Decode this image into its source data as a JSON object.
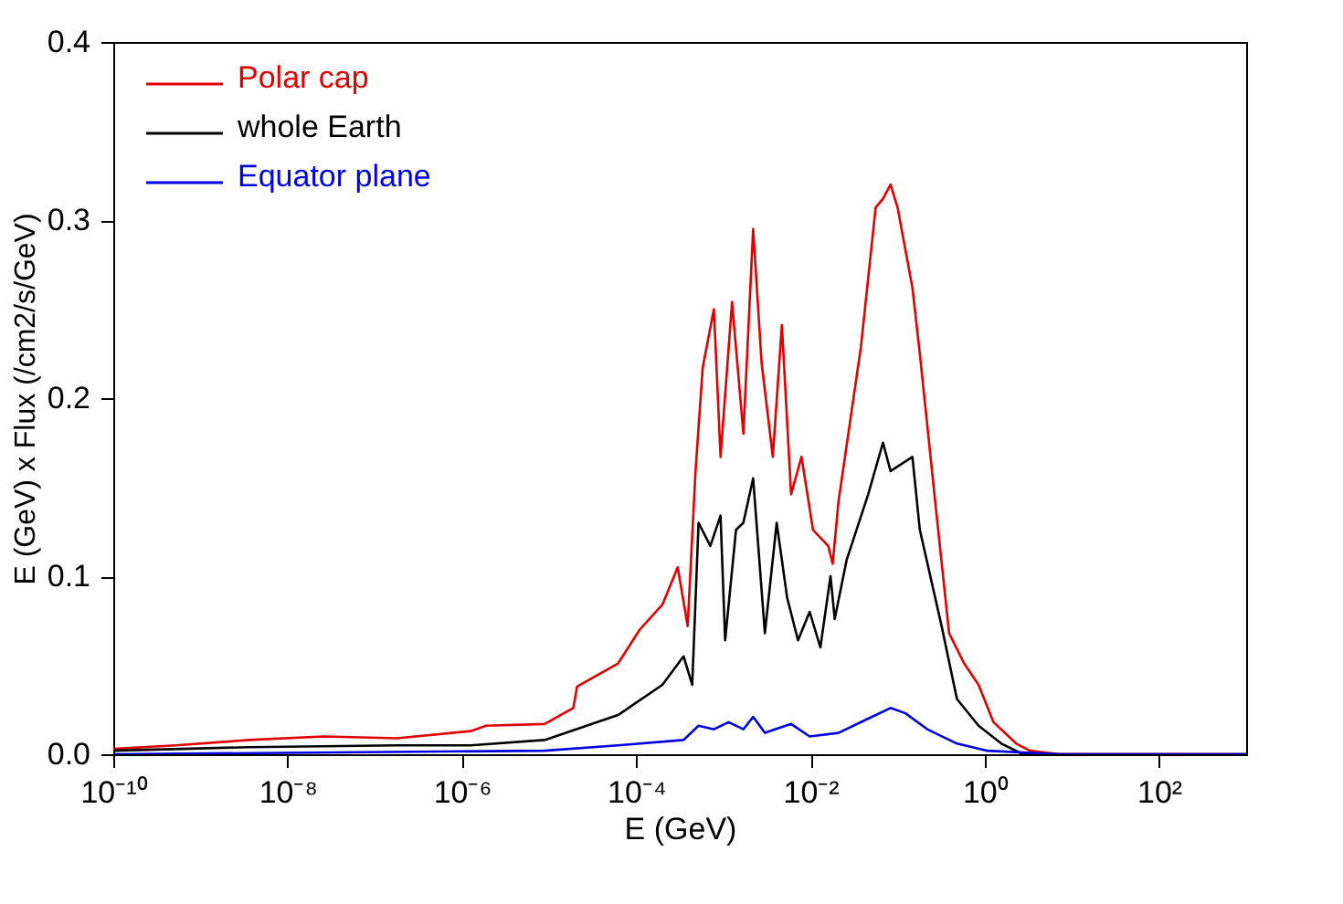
{
  "chart_data": {
    "type": "line",
    "xlabel": "E (GeV)",
    "ylabel": "E (GeV) x Flux (/cm2/s/GeV)",
    "log": "x",
    "grid": false,
    "legend": "top left",
    "marker": "none",
    "line_style": "solid",
    "xlim": [
      1e-10,
      1000
    ],
    "ylim": [
      0,
      0.4
    ],
    "xticks": [
      {
        "value": 1e-10,
        "label": "10⁻¹⁰"
      },
      {
        "value": 1e-08,
        "label": "10⁻⁸"
      },
      {
        "value": 1e-06,
        "label": "10⁻⁶"
      },
      {
        "value": 0.0001,
        "label": "10⁻⁴"
      },
      {
        "value": 0.01,
        "label": "10⁻²"
      },
      {
        "value": 1,
        "label": "10⁰"
      },
      {
        "value": 100,
        "label": "10²"
      }
    ],
    "yticks": [
      {
        "value": 0,
        "label": "0.0"
      },
      {
        "value": 0.1,
        "label": "0.1"
      },
      {
        "value": 0.2,
        "label": "0.2"
      },
      {
        "value": 0.3,
        "label": "0.3"
      },
      {
        "value": 0.4,
        "label": "0.4"
      }
    ],
    "series": [
      {
        "name": "Polar cap",
        "color": "#e00000",
        "x": [
          1e-10,
          5.2e-10,
          3.6e-09,
          2.6e-08,
          1.8e-07,
          1.26e-06,
          1.9e-06,
          8.9e-06,
          1.9e-05,
          2.1e-05,
          6.2e-05,
          0.00011,
          0.0002,
          0.0003,
          0.00039,
          0.00048,
          0.00058,
          0.00078,
          0.00093,
          0.00126,
          0.0017,
          0.0022,
          0.00275,
          0.0037,
          0.0047,
          0.006,
          0.0079,
          0.0107,
          0.016,
          0.018,
          0.021,
          0.038,
          0.056,
          0.068,
          0.083,
          0.1,
          0.148,
          0.18,
          0.27,
          0.39,
          0.58,
          0.85,
          1.26,
          2.3,
          3.3,
          7.2,
          1000
        ],
        "values": [
          0.003,
          0.005,
          0.008,
          0.01,
          0.009,
          0.013,
          0.016,
          0.017,
          0.026,
          0.038,
          0.051,
          0.07,
          0.084,
          0.105,
          0.072,
          0.159,
          0.217,
          0.25,
          0.167,
          0.254,
          0.18,
          0.295,
          0.22,
          0.167,
          0.241,
          0.146,
          0.167,
          0.126,
          0.117,
          0.107,
          0.142,
          0.229,
          0.307,
          0.312,
          0.32,
          0.307,
          0.262,
          0.225,
          0.142,
          0.068,
          0.051,
          0.039,
          0.018,
          0.006,
          0.002,
          0,
          0
        ]
      },
      {
        "name": "whole Earth",
        "color": "#000000",
        "x": [
          1e-10,
          3.6e-09,
          1.8e-07,
          1.26e-06,
          8.9e-06,
          6.2e-05,
          0.0002,
          0.00035,
          0.00044,
          0.00052,
          0.00071,
          0.00093,
          0.00105,
          0.0014,
          0.0017,
          0.0022,
          0.003,
          0.0041,
          0.0054,
          0.0072,
          0.0098,
          0.013,
          0.017,
          0.019,
          0.026,
          0.046,
          0.068,
          0.083,
          0.148,
          0.18,
          0.32,
          0.48,
          0.85,
          1.55,
          2.75,
          7.2,
          1000
        ],
        "values": [
          0.002,
          0.004,
          0.005,
          0.005,
          0.008,
          0.022,
          0.039,
          0.055,
          0.039,
          0.13,
          0.117,
          0.134,
          0.064,
          0.126,
          0.13,
          0.155,
          0.068,
          0.13,
          0.088,
          0.064,
          0.08,
          0.06,
          0.1,
          0.076,
          0.109,
          0.146,
          0.175,
          0.159,
          0.167,
          0.126,
          0.072,
          0.031,
          0.016,
          0.006,
          0,
          0,
          0
        ]
      },
      {
        "name": "Equator plane",
        "color": "#0000e0",
        "x": [
          1e-10,
          8.9e-06,
          6.2e-05,
          0.00035,
          0.00052,
          0.00078,
          0.00115,
          0.0017,
          0.0022,
          0.003,
          0.006,
          0.0098,
          0.021,
          0.046,
          0.083,
          0.123,
          0.22,
          0.48,
          1.05,
          7.2,
          1000
        ],
        "values": [
          0,
          0.002,
          0.005,
          0.008,
          0.016,
          0.014,
          0.018,
          0.014,
          0.021,
          0.012,
          0.017,
          0.01,
          0.012,
          0.02,
          0.026,
          0.023,
          0.014,
          0.006,
          0.002,
          0,
          0
        ]
      }
    ]
  }
}
